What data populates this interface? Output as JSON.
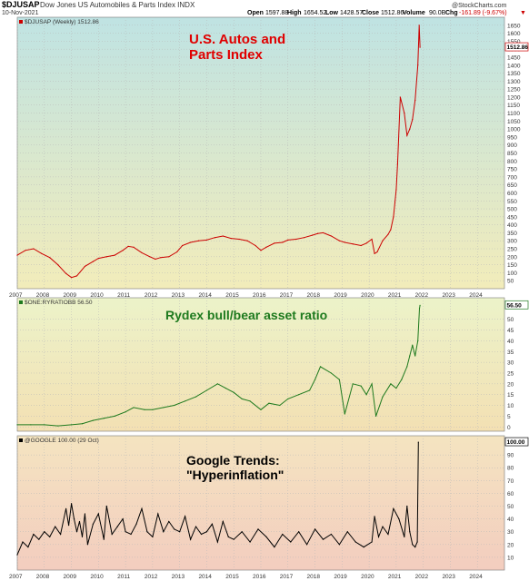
{
  "header": {
    "symbol": "$DJUSAP",
    "description": "Dow Jones US Automobiles & Parts Index INDX",
    "date": "10-Nov-2021",
    "open_label": "Open",
    "open": "1597.88",
    "high_label": "High",
    "high": "1654.52",
    "low_label": "Low",
    "low": "1428.57",
    "close_label": "Close",
    "close": "1512.86",
    "volume_label": "Volume",
    "volume": "90.0B",
    "chg_label": "Chg",
    "chg": "-161.89 (-9.67%)",
    "chg_arrow": "▼",
    "watermark": "@StockCharts.com"
  },
  "x_axis": {
    "years": [
      "2007",
      "2008",
      "2009",
      "2010",
      "2011",
      "2012",
      "2013",
      "2014",
      "2015",
      "2016",
      "2017",
      "2018",
      "2019",
      "2020",
      "2021",
      "2022",
      "2023",
      "2024"
    ],
    "year_fraction_start": 2007.0,
    "year_fraction_end": 2025.0
  },
  "colors": {
    "auto_line": "#cc0000",
    "rydex_line": "#1e7a1e",
    "google_line": "#000000",
    "auto_title": "#e00000",
    "rydex_title": "#1e7a1e",
    "google_title": "#000000",
    "grid": "#b8b8b8"
  },
  "chart_data": [
    {
      "type": "line",
      "panel": "autos",
      "legend": "$DJUSAP (Weekly) 1512.86",
      "title_line1": "U.S. Autos and",
      "title_line2": "Parts Index",
      "last_value_label": "1512.86",
      "ylim": [
        0,
        1700
      ],
      "yticks": [
        50,
        100,
        150,
        200,
        250,
        300,
        350,
        400,
        450,
        500,
        550,
        600,
        650,
        700,
        750,
        800,
        850,
        900,
        950,
        1000,
        1050,
        1100,
        1150,
        1200,
        1250,
        1300,
        1350,
        1400,
        1450,
        1500,
        1550,
        1600,
        1650
      ],
      "series": [
        {
          "x": [
            2007.0,
            2007.3,
            2007.6,
            2007.9,
            2008.2,
            2008.5,
            2008.8,
            2009.0,
            2009.2,
            2009.5,
            2009.8,
            2010.0,
            2010.3,
            2010.6,
            2010.9,
            2011.1,
            2011.3,
            2011.6,
            2011.9,
            2012.1,
            2012.3,
            2012.6,
            2012.9,
            2013.1,
            2013.4,
            2013.7,
            2014.0,
            2014.3,
            2014.6,
            2014.9,
            2015.2,
            2015.5,
            2015.8,
            2016.0,
            2016.2,
            2016.5,
            2016.8,
            2017.0,
            2017.3,
            2017.6,
            2017.9,
            2018.1,
            2018.3,
            2018.6,
            2018.9,
            2019.1,
            2019.4,
            2019.7,
            2019.9,
            2020.1,
            2020.2,
            2020.3,
            2020.5,
            2020.7,
            2020.8,
            2020.9,
            2021.0,
            2021.05,
            2021.15,
            2021.3,
            2021.4,
            2021.5,
            2021.6,
            2021.7,
            2021.8,
            2021.85,
            2021.88
          ],
          "y": [
            210,
            240,
            250,
            220,
            195,
            150,
            95,
            70,
            80,
            140,
            170,
            190,
            200,
            210,
            240,
            265,
            260,
            225,
            200,
            185,
            195,
            200,
            230,
            270,
            290,
            300,
            305,
            320,
            330,
            315,
            310,
            300,
            270,
            240,
            260,
            285,
            290,
            305,
            310,
            320,
            335,
            345,
            350,
            330,
            300,
            290,
            280,
            270,
            285,
            310,
            220,
            230,
            300,
            340,
            370,
            450,
            620,
            780,
            1200,
            1100,
            960,
            1000,
            1060,
            1180,
            1400,
            1650,
            1512
          ]
        }
      ]
    },
    {
      "type": "line",
      "panel": "rydex",
      "legend": "$ONE:RYRATIOBB 56.50",
      "title": "Rydex bull/bear asset ratio",
      "last_value_label": "56.50",
      "ylim": [
        -2,
        60
      ],
      "yticks": [
        0,
        5,
        10,
        15,
        20,
        25,
        30,
        35,
        40,
        45,
        50
      ],
      "series": [
        {
          "x": [
            2007.0,
            2007.5,
            2008.0,
            2008.5,
            2009.0,
            2009.4,
            2009.8,
            2010.2,
            2010.6,
            2011.0,
            2011.3,
            2011.7,
            2012.0,
            2012.4,
            2012.8,
            2013.2,
            2013.6,
            2014.0,
            2014.4,
            2014.7,
            2015.0,
            2015.3,
            2015.6,
            2016.0,
            2016.3,
            2016.7,
            2017.0,
            2017.4,
            2017.8,
            2018.0,
            2018.2,
            2018.6,
            2018.9,
            2019.1,
            2019.4,
            2019.7,
            2019.9,
            2020.1,
            2020.25,
            2020.5,
            2020.8,
            2021.0,
            2021.2,
            2021.4,
            2021.5,
            2021.6,
            2021.7,
            2021.8,
            2021.86,
            2021.88
          ],
          "y": [
            1,
            1,
            1,
            0.5,
            1,
            1.5,
            3,
            4,
            5,
            7,
            9,
            8,
            8,
            9,
            10,
            12,
            14,
            17,
            20,
            18,
            16,
            13,
            12,
            8,
            11,
            10,
            13,
            15,
            17,
            22,
            28,
            25,
            22,
            6,
            20,
            19,
            15,
            20,
            5,
            14,
            20,
            18,
            22,
            28,
            33,
            38,
            33,
            40,
            55,
            56.5
          ]
        }
      ]
    },
    {
      "type": "line",
      "panel": "google",
      "legend": "@GOOGLE 100.00 (29 Oct)",
      "title_line1": "Google Trends:",
      "title_line2": "\"Hyperinflation\"",
      "last_value_label": "100.00",
      "ylim": [
        0,
        105
      ],
      "yticks": [
        10,
        20,
        30,
        40,
        50,
        60,
        70,
        80,
        90
      ],
      "series": [
        {
          "x": [
            2007.0,
            2007.2,
            2007.4,
            2007.6,
            2007.8,
            2008.0,
            2008.2,
            2008.4,
            2008.6,
            2008.8,
            2008.9,
            2009.0,
            2009.1,
            2009.2,
            2009.3,
            2009.4,
            2009.5,
            2009.6,
            2009.8,
            2010.0,
            2010.2,
            2010.3,
            2010.5,
            2010.7,
            2010.9,
            2011.0,
            2011.2,
            2011.4,
            2011.6,
            2011.8,
            2012.0,
            2012.2,
            2012.4,
            2012.6,
            2012.8,
            2013.0,
            2013.2,
            2013.4,
            2013.6,
            2013.8,
            2014.0,
            2014.2,
            2014.4,
            2014.6,
            2014.8,
            2015.0,
            2015.3,
            2015.6,
            2015.9,
            2016.2,
            2016.5,
            2016.8,
            2017.1,
            2017.4,
            2017.7,
            2018.0,
            2018.3,
            2018.6,
            2018.9,
            2019.2,
            2019.5,
            2019.8,
            2020.1,
            2020.2,
            2020.35,
            2020.5,
            2020.7,
            2020.9,
            2021.1,
            2021.3,
            2021.4,
            2021.5,
            2021.6,
            2021.7,
            2021.78,
            2021.82
          ],
          "y": [
            12,
            22,
            18,
            28,
            24,
            30,
            26,
            34,
            28,
            48,
            35,
            52,
            40,
            30,
            38,
            26,
            44,
            20,
            36,
            44,
            24,
            50,
            28,
            34,
            40,
            30,
            28,
            36,
            48,
            30,
            26,
            44,
            30,
            38,
            32,
            30,
            42,
            24,
            34,
            28,
            30,
            36,
            22,
            38,
            26,
            24,
            30,
            22,
            32,
            26,
            18,
            28,
            22,
            30,
            20,
            32,
            24,
            28,
            20,
            30,
            22,
            18,
            22,
            42,
            26,
            34,
            28,
            48,
            40,
            26,
            50,
            30,
            20,
            18,
            22,
            100
          ]
        }
      ]
    }
  ]
}
